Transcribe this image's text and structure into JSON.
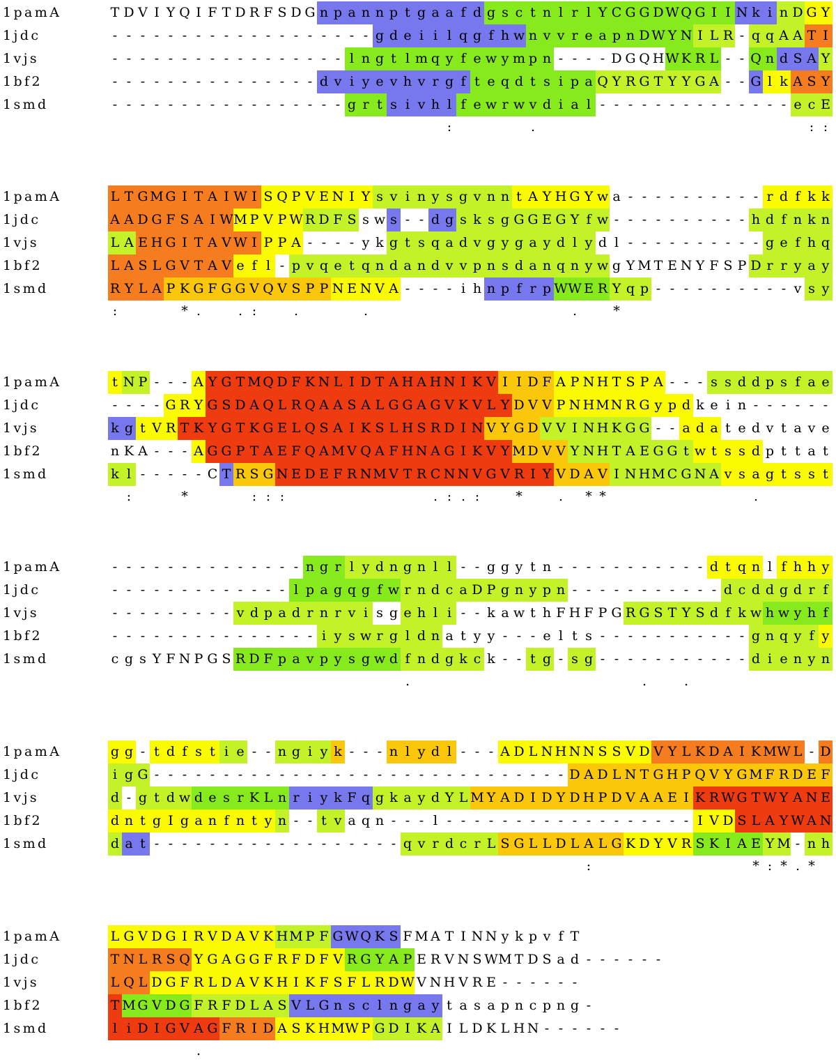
{
  "alignment": {
    "block_width": 52,
    "colors": {
      "blue": "#7777ee",
      "green": "#86ea1c",
      "lime": "#c2f227",
      "yellow": "#fbfb00",
      "gold": "#fbc70a",
      "orange": "#f67c20",
      "red": "#ee3c10"
    },
    "sequences": [
      {
        "name": "1pamA",
        "seq": "TDVIYQIFTDRFSDGnpannptgaafdgsctnlrlYCGGDWQGIINkinDGYLTGMGITAIWISQPVENIYsvinysgvnntAYHGYwa----------rdfkktNP---AYGTMQDFKNLIDTAHAHNIKVIIDFAPNHTSPA---ssddpsfae--------------ngrlydngnll--ggytn-----------dtqnlfhhygg-tdfstie--ngiyk---nlydl---ADLNHNNSSVDVYLKDAIKMWL-DLGVDGIRVDAVKHMPFGWQKSFMATINNykpvfT",
        "col": "                                    "
      },
      {
        "name": "1jdc",
        "seq": "-------------------gdeiilqgfhwnvvreapnDWYNILR-qqAATIAADGFSAIWMPVPWRDFSsws--dgsksgGGEGYfw----------hdfnkn----GRYGSDAQLRQAASALGGAGVKVLYDVVPNHMNRGypdkein-------------------lpagqgfwrndcaDPgnypn-----------dcddgdrfigG------------------------------DADLNTGHPQVYGMFRDEFTNLRSQYGAGGFRFDFVRGYAPERVNSWMTDSad------"
      },
      {
        "name": "1vjs",
        "seq": "-----------------lngtlmqyfewympn----DGQHWKRL--QndSAYLAEHGITAVWIPPA----ykgtsqadvgygaydlydl----------gefhqkgtVRTKYGTKGELQSAIKSLHSRDINVYGDVVINHKGG--adatedvtave---------vdpadrnrvisgehli--kawthFHFPGRGSTYSdfkwhwyhfd-gtdwdesrKLnriykFqgkaydYLMYADIDYDHPDVAAEIKRWGTWYANELQLDGFRLDAVKHIKFSFLRDWVNHVRE------"
      },
      {
        "name": "1bf2",
        "seq": "---------------dviyevhvrgfteqdtsipaQYRGTYYGA--GlkASYLASLGVTAVefl-pvqetqndandvvpnsdanqnywgYMTENYFSPDrryaynKA---AGGPTAEFQAMVQAFHNAGIKVYMDVVYNHTAEGGtwtssdpttat---------------iyswrgldnatyy---elts-----------gnqyfydntgIganfntyn--tvaqn---l------------------IVDSLAYWANTMGVDGFRFDLASVLGnsclngaytasapncpng-"
      },
      {
        "name": "1smd",
        "seq": "-----------------grtsivhlfewrwvdial--------------ecERYLAPKGFGGVQVSPPNENVA----ihnpfrpWWERYqp----------vsykl-----CTRSGNEDEFRNMVTRCNNVGVRIYVDAVINHMCGNAvsagtsstcgsYFNPGSRDFpavpysgwdfndgkck--tg-sg-----------dienyndat------------------qvrdcrLSGLLDLALGKDYVRSKIAEYM-nhliDIGVAGFRIDASKHMWPGDIKAILDKLHN------"
      }
    ],
    "consensus": "                        :     .                   :::    *.  .:  .    .              .  *                :   *    :::          .:.:  *  . **          .                          .                .  .                                            :           *:*.*       .      "
  }
}
